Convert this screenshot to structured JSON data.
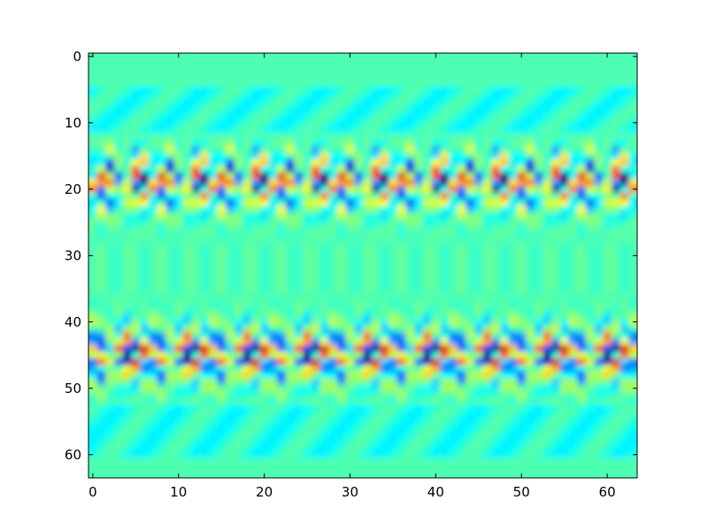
{
  "chart_data": {
    "type": "heatmap",
    "title": "",
    "xlabel": "",
    "ylabel": "",
    "xlim": [
      -0.5,
      63.5
    ],
    "ylim": [
      63.5,
      -0.5
    ],
    "grid": false,
    "colormap": "jet",
    "xticks": [
      0,
      10,
      20,
      30,
      40,
      50,
      60
    ],
    "yticks": [
      0,
      10,
      20,
      30,
      40,
      50,
      60
    ],
    "xtick_labels": [
      "0",
      "10",
      "20",
      "30",
      "40",
      "50",
      "60"
    ],
    "ytick_labels": [
      "0",
      "10",
      "20",
      "30",
      "40",
      "50",
      "60"
    ],
    "grid_size": [
      64,
      64
    ],
    "background_value": 0.45,
    "bands": [
      {
        "row_start": 13,
        "row_end": 28,
        "center_row": 19
      },
      {
        "row_start": 37,
        "row_end": 52,
        "center_row": 45
      }
    ],
    "pattern_period_columns": 7
  }
}
